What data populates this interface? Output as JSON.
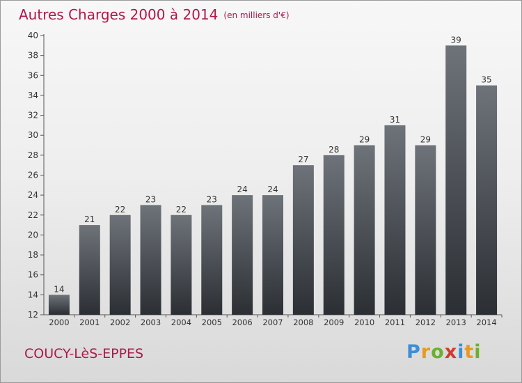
{
  "title": "Autres Charges 2000 à 2014",
  "unit": "(en milliers d'€)",
  "town": "COUCY-LèS-EPPES",
  "logo": {
    "letters": [
      "P",
      "r",
      "o",
      "x",
      "i",
      "t",
      "i"
    ],
    "colors": [
      "#3b8fd6",
      "#e89a1d",
      "#6ab02d",
      "#d33a2c",
      "#3b8fd6",
      "#e89a1d",
      "#6ab02d"
    ]
  },
  "colors": {
    "title": "#b0184a",
    "bar_top": "#6e737a",
    "bar_bottom": "#2b2f34"
  },
  "chart_data": {
    "type": "bar",
    "categories": [
      "2000",
      "2001",
      "2002",
      "2003",
      "2004",
      "2005",
      "2006",
      "2007",
      "2008",
      "2009",
      "2010",
      "2011",
      "2012",
      "2013",
      "2014"
    ],
    "values": [
      14,
      21,
      22,
      23,
      22,
      23,
      24,
      24,
      27,
      28,
      29,
      31,
      29,
      39,
      35
    ],
    "ylim": [
      12,
      40
    ],
    "yticks": [
      12,
      14,
      16,
      18,
      20,
      22,
      24,
      26,
      28,
      30,
      32,
      34,
      36,
      38,
      40
    ],
    "grid": false,
    "data_labels": true
  }
}
